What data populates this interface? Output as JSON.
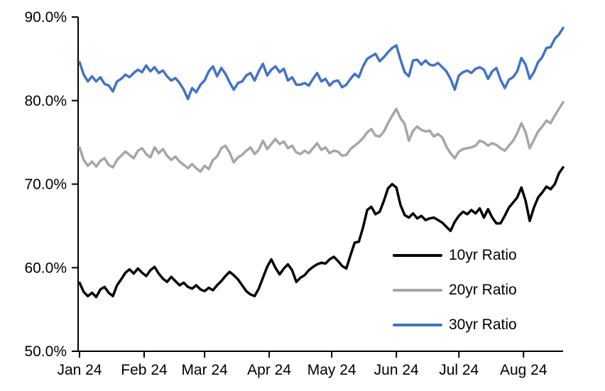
{
  "chart_data": {
    "type": "line",
    "title": "",
    "xlabel": "",
    "ylabel": "",
    "ylim": [
      50,
      90
    ],
    "grid": false,
    "legend_position": "inside-bottom-right",
    "x_max_day": 232,
    "x_day_step": 2,
    "axis_color": "#000000",
    "y_ticks": [
      {
        "value": 90,
        "label": "90.0%"
      },
      {
        "value": 80,
        "label": "80.0%"
      },
      {
        "value": 70,
        "label": "70.0%"
      },
      {
        "value": 60,
        "label": "60.0%"
      },
      {
        "value": 50,
        "label": "50.0%"
      }
    ],
    "x_ticks": [
      {
        "day": 0,
        "label": "Jan 24"
      },
      {
        "day": 31,
        "label": "Feb 24"
      },
      {
        "day": 60,
        "label": "Mar 24"
      },
      {
        "day": 91,
        "label": "Apr 24"
      },
      {
        "day": 121,
        "label": "May 24"
      },
      {
        "day": 152,
        "label": "Jun 24"
      },
      {
        "day": 182,
        "label": "Jul 24"
      },
      {
        "day": 213,
        "label": "Aug 24"
      }
    ],
    "series": [
      {
        "name": "10yr Ratio",
        "color": "#000000",
        "values": [
          58.2,
          57.1,
          56.6,
          57.0,
          56.5,
          57.4,
          57.7,
          57.0,
          56.6,
          57.9,
          58.6,
          59.4,
          59.8,
          59.3,
          59.9,
          59.4,
          59.0,
          59.7,
          60.1,
          59.3,
          58.7,
          58.3,
          58.9,
          58.4,
          57.9,
          58.2,
          57.7,
          57.5,
          57.9,
          57.4,
          57.2,
          57.6,
          57.3,
          57.9,
          58.4,
          59.0,
          59.5,
          59.1,
          58.6,
          57.9,
          57.2,
          56.8,
          56.6,
          57.5,
          58.8,
          60.1,
          61.0,
          60.0,
          59.2,
          59.9,
          60.4,
          59.7,
          58.3,
          58.8,
          59.1,
          59.7,
          60.1,
          60.4,
          60.6,
          60.5,
          61.0,
          61.3,
          60.8,
          60.2,
          59.9,
          61.5,
          63.0,
          63.1,
          64.8,
          66.9,
          67.3,
          66.4,
          66.7,
          68.0,
          69.5,
          70.0,
          69.6,
          67.5,
          66.3,
          66.0,
          66.5,
          65.9,
          66.2,
          65.7,
          65.9,
          66.0,
          65.7,
          65.4,
          64.9,
          64.4,
          65.5,
          66.2,
          66.7,
          66.4,
          66.9,
          66.5,
          67.1,
          66.0,
          67.0,
          66.0,
          65.3,
          65.3,
          66.2,
          67.2,
          67.8,
          68.4,
          69.6,
          68.0,
          65.6,
          67.2,
          68.4,
          69.0,
          69.7,
          69.4,
          70.0,
          71.3,
          72.0
        ]
      },
      {
        "name": "20yr Ratio",
        "color": "#A6A6A6",
        "values": [
          74.4,
          72.9,
          72.2,
          72.7,
          72.1,
          72.8,
          73.1,
          72.3,
          72.0,
          72.9,
          73.4,
          73.9,
          73.5,
          73.1,
          74.0,
          74.3,
          73.6,
          73.2,
          74.4,
          73.7,
          74.2,
          73.4,
          72.9,
          73.3,
          72.7,
          72.3,
          71.9,
          72.4,
          71.9,
          71.5,
          72.2,
          71.8,
          72.9,
          73.3,
          74.3,
          74.6,
          73.8,
          72.6,
          73.2,
          73.5,
          74.0,
          74.4,
          73.6,
          74.1,
          75.2,
          74.2,
          74.8,
          75.4,
          74.8,
          75.1,
          74.3,
          74.6,
          73.8,
          73.6,
          74.0,
          73.7,
          74.3,
          74.9,
          74.1,
          74.4,
          73.7,
          74.0,
          73.9,
          73.4,
          73.5,
          74.2,
          74.6,
          75.0,
          75.5,
          76.2,
          76.6,
          75.8,
          75.7,
          76.3,
          77.3,
          78.2,
          79.0,
          77.9,
          77.2,
          75.2,
          76.4,
          76.9,
          76.5,
          76.3,
          76.4,
          75.7,
          76.0,
          75.6,
          74.5,
          73.7,
          73.1,
          73.9,
          74.2,
          74.3,
          74.4,
          74.6,
          75.2,
          75.0,
          74.6,
          74.9,
          74.7,
          74.3,
          74.0,
          74.6,
          75.2,
          76.1,
          77.3,
          76.2,
          74.3,
          75.3,
          76.3,
          76.9,
          77.6,
          77.3,
          78.2,
          79.0,
          79.8
        ]
      },
      {
        "name": "30yr Ratio",
        "color": "#4472C4",
        "values": [
          84.6,
          83.1,
          82.3,
          82.9,
          82.3,
          82.8,
          82.0,
          81.8,
          81.1,
          82.3,
          82.6,
          83.1,
          82.8,
          83.3,
          83.7,
          83.4,
          84.2,
          83.5,
          84.0,
          83.3,
          83.6,
          82.9,
          82.4,
          82.7,
          82.1,
          81.3,
          80.2,
          81.5,
          81.0,
          81.9,
          82.4,
          83.5,
          84.1,
          82.9,
          83.9,
          83.2,
          82.2,
          81.3,
          82.1,
          82.3,
          83.0,
          83.3,
          82.4,
          83.5,
          84.4,
          83.0,
          83.7,
          84.1,
          83.4,
          83.8,
          82.4,
          82.8,
          81.9,
          81.9,
          82.1,
          81.8,
          82.6,
          83.3,
          82.3,
          82.6,
          81.8,
          82.3,
          82.4,
          81.6,
          81.9,
          82.6,
          83.2,
          82.8,
          84.1,
          85.0,
          85.3,
          85.6,
          84.7,
          85.2,
          85.8,
          86.3,
          86.6,
          84.9,
          83.4,
          82.9,
          84.8,
          84.9,
          84.3,
          84.8,
          84.3,
          84.2,
          84.5,
          84.0,
          83.5,
          82.6,
          81.3,
          83.0,
          83.4,
          83.6,
          83.3,
          83.8,
          84.0,
          83.7,
          82.6,
          83.5,
          83.9,
          82.5,
          81.5,
          82.5,
          82.8,
          83.5,
          85.1,
          84.3,
          82.6,
          83.4,
          84.6,
          85.2,
          86.3,
          86.4,
          87.4,
          87.9,
          88.7
        ]
      }
    ]
  },
  "legend": {
    "items": [
      {
        "label": "10yr Ratio"
      },
      {
        "label": "20yr Ratio"
      },
      {
        "label": "30yr Ratio"
      }
    ]
  }
}
